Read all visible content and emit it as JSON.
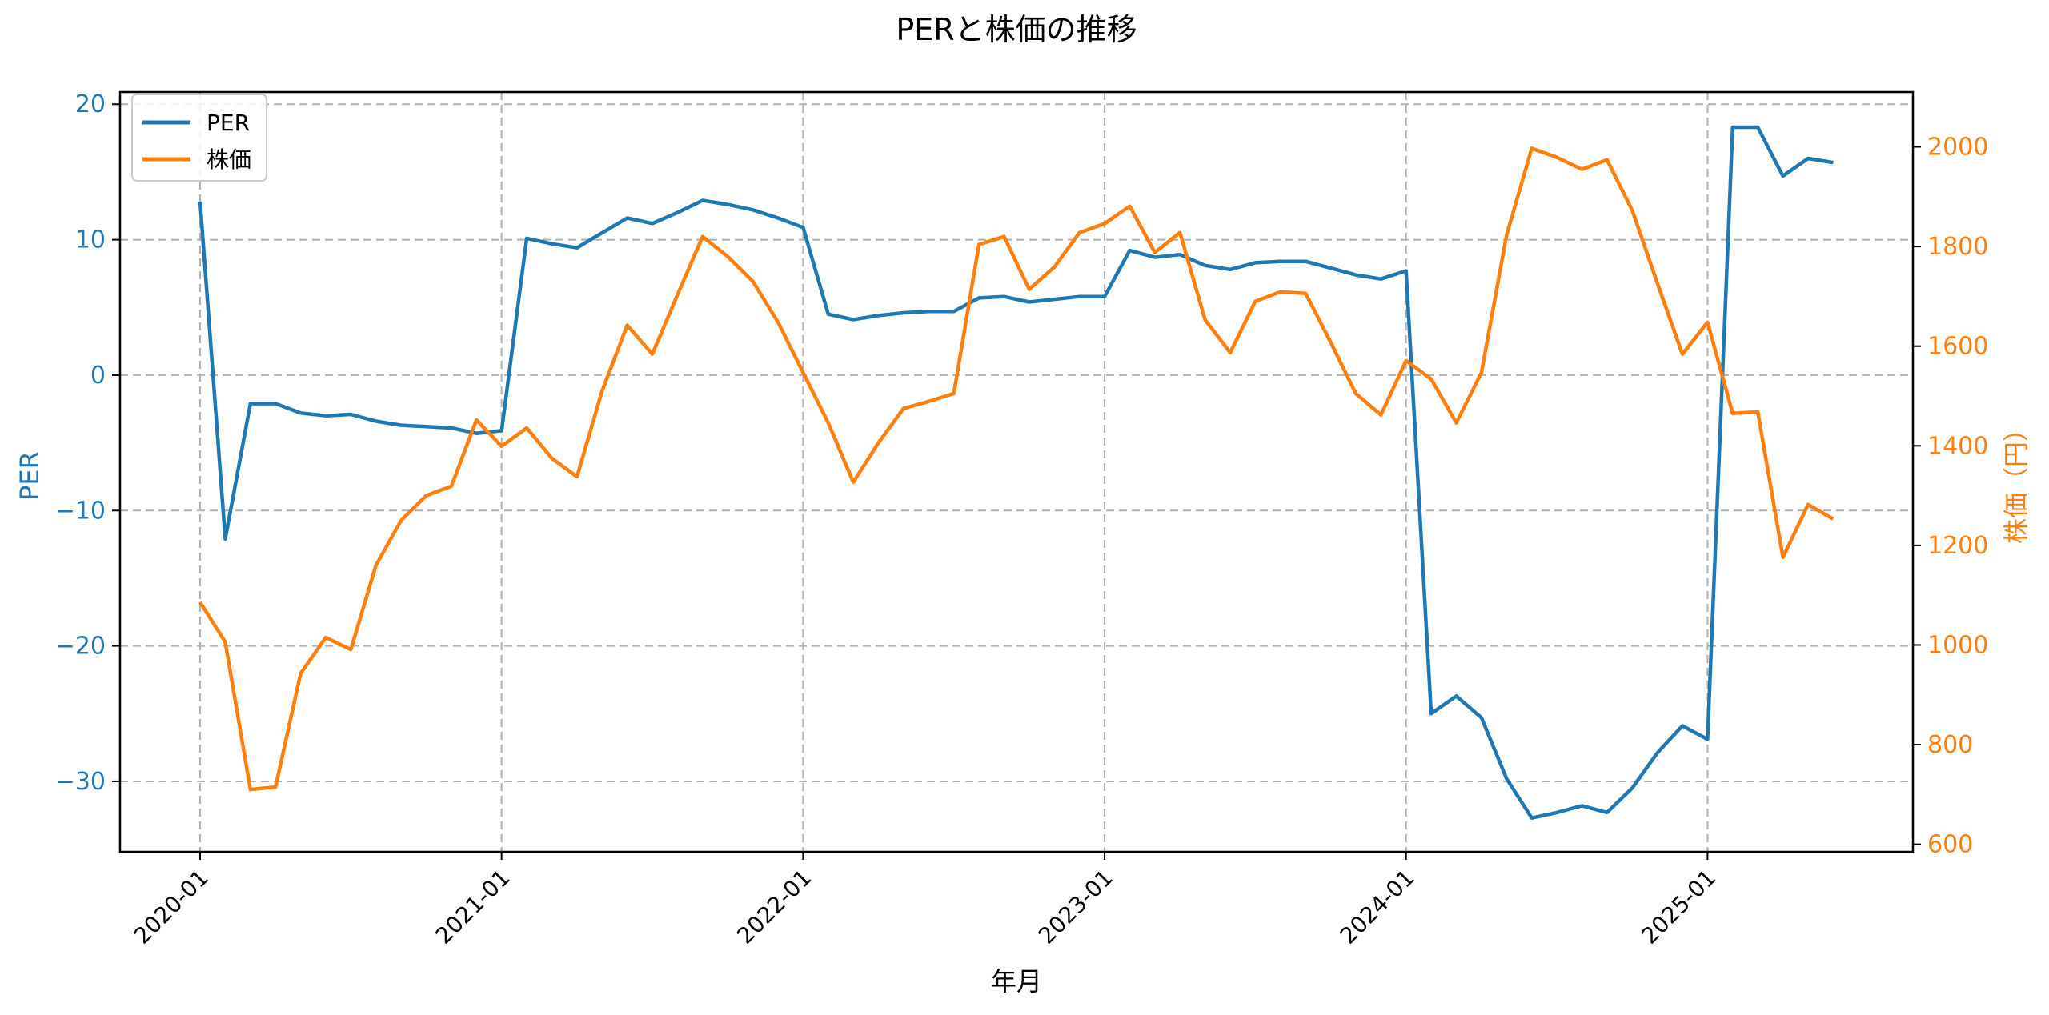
{
  "chart_data": {
    "type": "line",
    "title": "PERと株価の推移",
    "xlabel": "年月",
    "ylabel": "PER",
    "ylabel_right": "株価（円）",
    "x": [
      "2020-01",
      "2020-02",
      "2020-03",
      "2020-04",
      "2020-05",
      "2020-06",
      "2020-07",
      "2020-08",
      "2020-09",
      "2020-10",
      "2020-11",
      "2020-12",
      "2021-01",
      "2021-02",
      "2021-03",
      "2021-04",
      "2021-05",
      "2021-06",
      "2021-07",
      "2021-08",
      "2021-09",
      "2021-10",
      "2021-11",
      "2021-12",
      "2022-01",
      "2022-02",
      "2022-03",
      "2022-04",
      "2022-05",
      "2022-06",
      "2022-07",
      "2022-08",
      "2022-09",
      "2022-10",
      "2022-11",
      "2022-12",
      "2023-01",
      "2023-02",
      "2023-03",
      "2023-04",
      "2023-05",
      "2023-06",
      "2023-07",
      "2023-08",
      "2023-09",
      "2023-10",
      "2023-11",
      "2023-12",
      "2024-01",
      "2024-02",
      "2024-03",
      "2024-04",
      "2024-05",
      "2024-06",
      "2024-07",
      "2024-08",
      "2024-09",
      "2024-10",
      "2024-11",
      "2024-12",
      "2025-01",
      "2025-02",
      "2025-03",
      "2025-04",
      "2025-05",
      "2025-06"
    ],
    "xticks": [
      "2020-01",
      "2021-01",
      "2022-01",
      "2023-01",
      "2024-01",
      "2025-01"
    ],
    "series": [
      {
        "name": "PER",
        "axis": "left",
        "color": "#1f77b4",
        "values": [
          12.8,
          -12.1,
          -2.1,
          -2.1,
          -2.8,
          -3.0,
          -2.9,
          -3.4,
          -3.7,
          -3.8,
          -3.9,
          -4.3,
          -4.1,
          10.1,
          9.7,
          9.4,
          10.5,
          11.6,
          11.2,
          12.0,
          12.9,
          12.6,
          12.2,
          11.6,
          10.9,
          4.5,
          4.1,
          4.4,
          4.6,
          4.7,
          4.7,
          5.7,
          5.8,
          5.4,
          5.6,
          5.8,
          5.8,
          9.2,
          8.7,
          8.9,
          8.1,
          7.8,
          8.3,
          8.4,
          8.4,
          7.9,
          7.4,
          7.1,
          7.7,
          -25.0,
          -23.7,
          -25.3,
          -29.8,
          -32.7,
          -32.3,
          -31.8,
          -32.3,
          -30.5,
          -27.9,
          -25.9,
          -26.9,
          18.3,
          18.3,
          14.7,
          16.0,
          15.7
        ]
      },
      {
        "name": "株価",
        "axis": "right",
        "color": "#ff7f0e",
        "values": [
          1086,
          1006,
          710,
          715,
          943,
          1015,
          991,
          1160,
          1250,
          1300,
          1319,
          1452,
          1399,
          1436,
          1375,
          1338,
          1510,
          1642,
          1584,
          1703,
          1820,
          1780,
          1730,
          1648,
          1547,
          1446,
          1327,
          1406,
          1475,
          1489,
          1505,
          1804,
          1820,
          1714,
          1759,
          1828,
          1846,
          1881,
          1788,
          1828,
          1653,
          1587,
          1690,
          1709,
          1706,
          1608,
          1505,
          1462,
          1571,
          1534,
          1446,
          1547,
          1823,
          1997,
          1979,
          1955,
          1974,
          1873,
          1727,
          1584,
          1648,
          1465,
          1468,
          1176,
          1282,
          1253
        ]
      }
    ],
    "ylim": [
      -35.2,
      20.9
    ],
    "ylim_right": [
      585,
      2110
    ],
    "yticks": [
      20,
      10,
      0,
      -10,
      -20,
      -30
    ],
    "yticks_right": [
      2000,
      1800,
      1600,
      1400,
      1200,
      1000,
      800,
      600
    ],
    "grid": true,
    "legend_position": "upper left"
  },
  "legend": [
    {
      "label": "PER",
      "color": "#1f77b4"
    },
    {
      "label": "株価",
      "color": "#ff7f0e"
    }
  ]
}
